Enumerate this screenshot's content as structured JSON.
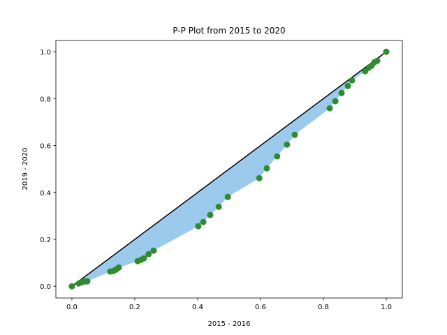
{
  "chart_data": {
    "type": "pp",
    "title": "P-P Plot from 2015 to 2020",
    "xlabel": "2015 - 2016",
    "ylabel": "2019 - 2020",
    "xlim": [
      -0.051,
      1.051
    ],
    "ylim": [
      -0.05,
      1.048
    ],
    "xticks": [
      {
        "value": 0,
        "label": "0.0"
      },
      {
        "value": 0.2,
        "label": "0.2"
      },
      {
        "value": 0.4,
        "label": "0.4"
      },
      {
        "value": 0.6,
        "label": "0.6"
      },
      {
        "value": 0.8,
        "label": "0.8"
      },
      {
        "value": 1,
        "label": "1.0"
      }
    ],
    "yticks": [
      {
        "value": 0,
        "label": "0.0"
      },
      {
        "value": 0.2,
        "label": "0.2"
      },
      {
        "value": 0.4,
        "label": "0.4"
      },
      {
        "value": 0.6,
        "label": "0.6"
      },
      {
        "value": 0.8,
        "label": "0.8"
      },
      {
        "value": 1,
        "label": "1.0"
      }
    ],
    "fill_color": "#9ccaec",
    "reference_line": {
      "x": [
        0,
        1
      ],
      "y": [
        0,
        1
      ],
      "color": "#000000"
    },
    "x": [
      0,
      0.022,
      0.033,
      0.042,
      0.049,
      0.122,
      0.131,
      0.14,
      0.149,
      0.209,
      0.22,
      0.229,
      0.244,
      0.26,
      0.402,
      0.418,
      0.44,
      0.467,
      0.496,
      0.596,
      0.62,
      0.653,
      0.684,
      0.709,
      0.82,
      0.838,
      0.858,
      0.878,
      0.891,
      0.933,
      0.944,
      0.953,
      0.962,
      0.971,
      1
    ],
    "series": [
      {
        "color": "#2e8b2e",
        "values": [
          0,
          0.012,
          0.018,
          0.021,
          0.021,
          0.063,
          0.065,
          0.071,
          0.08,
          0.107,
          0.113,
          0.119,
          0.137,
          0.152,
          0.256,
          0.274,
          0.304,
          0.339,
          0.381,
          0.461,
          0.503,
          0.554,
          0.604,
          0.646,
          0.759,
          0.789,
          0.824,
          0.854,
          0.878,
          0.917,
          0.932,
          0.94,
          0.955,
          0.961,
          1
        ]
      }
    ]
  }
}
